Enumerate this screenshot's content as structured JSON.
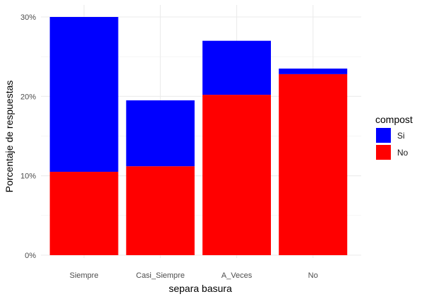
{
  "chart_data": {
    "type": "bar",
    "stacked": true,
    "categories": [
      "Siempre",
      "Casi_Siempre",
      "A_Veces",
      "No"
    ],
    "series": [
      {
        "name": "No",
        "color": "#ff0000",
        "values": [
          10.5,
          11.2,
          20.2,
          22.8
        ]
      },
      {
        "name": "Si",
        "color": "#0000ff",
        "values": [
          19.5,
          8.3,
          6.8,
          0.7
        ]
      }
    ],
    "xlabel": "separa basura",
    "ylabel": "Porcentaje de respuestas",
    "ylim": [
      0,
      30
    ],
    "yticks": [
      0,
      10,
      20,
      30
    ],
    "ytick_labels": [
      "0%",
      "10%",
      "20%",
      "30%"
    ],
    "grid": true,
    "legend": {
      "title": "compost",
      "placement": "right",
      "entries": [
        {
          "label": "Si",
          "color": "#0000ff"
        },
        {
          "label": "No",
          "color": "#ff0000"
        }
      ]
    }
  }
}
